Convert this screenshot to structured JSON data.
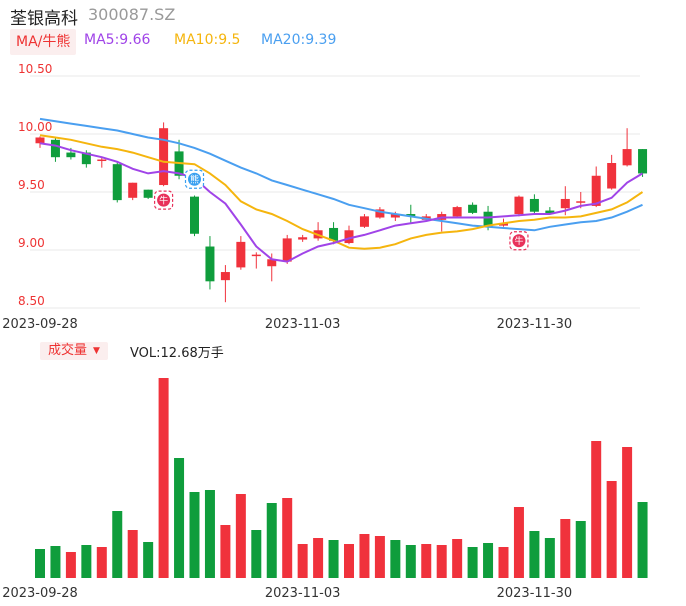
{
  "header": {
    "name": "荃银高科",
    "code": "300087.SZ"
  },
  "ma_toggle": {
    "label": "MA/牛熊"
  },
  "ma_legend": [
    {
      "text": "MA5:9.66",
      "color": "#a044e8"
    },
    {
      "text": "MA10:9.5",
      "color": "#f5b50e"
    },
    {
      "text": "MA20:9.39",
      "color": "#4a9ff0"
    }
  ],
  "volume_toggle": {
    "label": "成交量"
  },
  "volume_text": "VOL:12.68万手",
  "colors": {
    "up": "#f0323c",
    "down": "#0f9d3c",
    "grid": "#e8e8e8",
    "bull_badge": "#e8315a",
    "bear_badge": "#3aa0f0"
  },
  "chart_data": [
    {
      "type": "candlestick",
      "yticks": [
        "10.50",
        "10.00",
        "9.50",
        "9.00",
        "8.50"
      ],
      "ylim": [
        8.5,
        10.5
      ],
      "xticks": [
        {
          "label": "2023-09-28",
          "index": 0
        },
        {
          "label": "2023-11-03",
          "index": 17
        },
        {
          "label": "2023-11-30",
          "index": 32
        }
      ],
      "candles": [
        {
          "o": 9.92,
          "h": 9.98,
          "l": 9.88,
          "c": 9.97
        },
        {
          "o": 9.95,
          "h": 9.97,
          "l": 9.76,
          "c": 9.8
        },
        {
          "o": 9.84,
          "h": 9.88,
          "l": 9.78,
          "c": 9.8
        },
        {
          "o": 9.84,
          "h": 9.86,
          "l": 9.71,
          "c": 9.74
        },
        {
          "o": 9.77,
          "h": 9.8,
          "l": 9.71,
          "c": 9.78
        },
        {
          "o": 9.74,
          "h": 9.76,
          "l": 9.41,
          "c": 9.43
        },
        {
          "o": 9.45,
          "h": 9.58,
          "l": 9.43,
          "c": 9.58
        },
        {
          "o": 9.52,
          "h": 9.52,
          "l": 9.44,
          "c": 9.45
        },
        {
          "o": 9.56,
          "h": 10.1,
          "l": 9.55,
          "c": 10.05
        },
        {
          "o": 9.85,
          "h": 9.95,
          "l": 9.61,
          "c": 9.64
        },
        {
          "o": 9.46,
          "h": 9.47,
          "l": 9.12,
          "c": 9.14
        },
        {
          "o": 9.03,
          "h": 9.12,
          "l": 8.66,
          "c": 8.73
        },
        {
          "o": 8.74,
          "h": 8.87,
          "l": 8.55,
          "c": 8.81
        },
        {
          "o": 8.85,
          "h": 9.12,
          "l": 8.83,
          "c": 9.07
        },
        {
          "o": 8.96,
          "h": 8.98,
          "l": 8.84,
          "c": 8.96
        },
        {
          "o": 8.86,
          "h": 8.97,
          "l": 8.73,
          "c": 8.92
        },
        {
          "o": 8.9,
          "h": 9.13,
          "l": 8.88,
          "c": 9.1
        },
        {
          "o": 9.09,
          "h": 9.13,
          "l": 9.07,
          "c": 9.11
        },
        {
          "o": 9.1,
          "h": 9.24,
          "l": 9.08,
          "c": 9.17
        },
        {
          "o": 9.19,
          "h": 9.24,
          "l": 9.05,
          "c": 9.08
        },
        {
          "o": 9.06,
          "h": 9.21,
          "l": 9.05,
          "c": 9.17
        },
        {
          "o": 9.2,
          "h": 9.31,
          "l": 9.19,
          "c": 9.29
        },
        {
          "o": 9.28,
          "h": 9.37,
          "l": 9.27,
          "c": 9.35
        },
        {
          "o": 9.28,
          "h": 9.33,
          "l": 9.25,
          "c": 9.31
        },
        {
          "o": 9.31,
          "h": 9.39,
          "l": 9.23,
          "c": 9.29
        },
        {
          "o": 9.26,
          "h": 9.31,
          "l": 9.25,
          "c": 9.29
        },
        {
          "o": 9.26,
          "h": 9.33,
          "l": 9.16,
          "c": 9.31
        },
        {
          "o": 9.29,
          "h": 9.38,
          "l": 9.28,
          "c": 9.37
        },
        {
          "o": 9.39,
          "h": 9.41,
          "l": 9.31,
          "c": 9.32
        },
        {
          "o": 9.33,
          "h": 9.38,
          "l": 9.17,
          "c": 9.2
        },
        {
          "o": 9.21,
          "h": 9.27,
          "l": 9.2,
          "c": 9.23
        },
        {
          "o": 9.31,
          "h": 9.47,
          "l": 9.29,
          "c": 9.46
        },
        {
          "o": 9.44,
          "h": 9.48,
          "l": 9.31,
          "c": 9.33
        },
        {
          "o": 9.34,
          "h": 9.37,
          "l": 9.31,
          "c": 9.31
        },
        {
          "o": 9.36,
          "h": 9.55,
          "l": 9.3,
          "c": 9.44
        },
        {
          "o": 9.41,
          "h": 9.5,
          "l": 9.36,
          "c": 9.42
        },
        {
          "o": 9.38,
          "h": 9.72,
          "l": 9.37,
          "c": 9.64
        },
        {
          "o": 9.53,
          "h": 9.82,
          "l": 9.52,
          "c": 9.75
        },
        {
          "o": 9.73,
          "h": 10.05,
          "l": 9.72,
          "c": 9.87
        },
        {
          "o": 9.87,
          "h": 9.87,
          "l": 9.63,
          "c": 9.66
        }
      ],
      "ma5": [
        9.92,
        9.9,
        9.86,
        9.83,
        9.8,
        9.76,
        9.7,
        9.66,
        9.68,
        9.66,
        9.62,
        9.5,
        9.4,
        9.22,
        9.03,
        8.92,
        8.9,
        8.97,
        9.03,
        9.06,
        9.1,
        9.13,
        9.17,
        9.21,
        9.23,
        9.25,
        9.28,
        9.28,
        9.28,
        9.28,
        9.29,
        9.3,
        9.31,
        9.31,
        9.34,
        9.38,
        9.4,
        9.45,
        9.58,
        9.66
      ],
      "ma10": [
        9.99,
        9.97,
        9.95,
        9.92,
        9.89,
        9.87,
        9.84,
        9.8,
        9.76,
        9.75,
        9.74,
        9.66,
        9.56,
        9.42,
        9.35,
        9.31,
        9.25,
        9.18,
        9.13,
        9.08,
        9.02,
        9.01,
        9.02,
        9.05,
        9.1,
        9.13,
        9.15,
        9.16,
        9.18,
        9.21,
        9.23,
        9.25,
        9.26,
        9.28,
        9.28,
        9.29,
        9.32,
        9.35,
        9.41,
        9.5
      ],
      "ma20": [
        10.13,
        10.11,
        10.09,
        10.07,
        10.05,
        10.03,
        10.0,
        9.97,
        9.95,
        9.92,
        9.88,
        9.83,
        9.77,
        9.71,
        9.66,
        9.6,
        9.56,
        9.52,
        9.48,
        9.44,
        9.39,
        9.36,
        9.33,
        9.31,
        9.29,
        9.27,
        9.25,
        9.23,
        9.21,
        9.2,
        9.19,
        9.18,
        9.17,
        9.2,
        9.22,
        9.24,
        9.25,
        9.28,
        9.33,
        9.39
      ],
      "badges": [
        {
          "index": 8,
          "value": 9.43,
          "kind": "bull",
          "text": "牛"
        },
        {
          "index": 10,
          "value": 9.61,
          "kind": "bear",
          "text": "熊"
        },
        {
          "index": 31,
          "value": 9.08,
          "kind": "bull",
          "text": "牛"
        }
      ]
    },
    {
      "type": "bar",
      "title": "成交量",
      "xticks": [
        "2023-09-28",
        "2023-11-03",
        "2023-11-30"
      ],
      "volumes": [
        {
          "v": 2.9,
          "up": false
        },
        {
          "v": 3.2,
          "up": false
        },
        {
          "v": 2.6,
          "up": true
        },
        {
          "v": 3.3,
          "up": false
        },
        {
          "v": 3.1,
          "up": true
        },
        {
          "v": 6.7,
          "up": false
        },
        {
          "v": 4.8,
          "up": true
        },
        {
          "v": 3.6,
          "up": false
        },
        {
          "v": 20.0,
          "up": true
        },
        {
          "v": 12.0,
          "up": false
        },
        {
          "v": 8.6,
          "up": false
        },
        {
          "v": 8.8,
          "up": false
        },
        {
          "v": 5.3,
          "up": true
        },
        {
          "v": 8.4,
          "up": true
        },
        {
          "v": 4.8,
          "up": false
        },
        {
          "v": 7.5,
          "up": false
        },
        {
          "v": 8.0,
          "up": true
        },
        {
          "v": 3.4,
          "up": true
        },
        {
          "v": 4.0,
          "up": true
        },
        {
          "v": 3.8,
          "up": false
        },
        {
          "v": 3.4,
          "up": true
        },
        {
          "v": 4.4,
          "up": true
        },
        {
          "v": 4.2,
          "up": true
        },
        {
          "v": 3.8,
          "up": false
        },
        {
          "v": 3.3,
          "up": false
        },
        {
          "v": 3.4,
          "up": true
        },
        {
          "v": 3.3,
          "up": true
        },
        {
          "v": 3.9,
          "up": true
        },
        {
          "v": 3.1,
          "up": false
        },
        {
          "v": 3.5,
          "up": false
        },
        {
          "v": 3.1,
          "up": true
        },
        {
          "v": 7.1,
          "up": true
        },
        {
          "v": 4.7,
          "up": false
        },
        {
          "v": 4.0,
          "up": false
        },
        {
          "v": 5.9,
          "up": true
        },
        {
          "v": 5.7,
          "up": false
        },
        {
          "v": 13.7,
          "up": true
        },
        {
          "v": 9.7,
          "up": true
        },
        {
          "v": 13.1,
          "up": true
        },
        {
          "v": 7.6,
          "up": false
        }
      ],
      "vmax": 20.0
    }
  ]
}
